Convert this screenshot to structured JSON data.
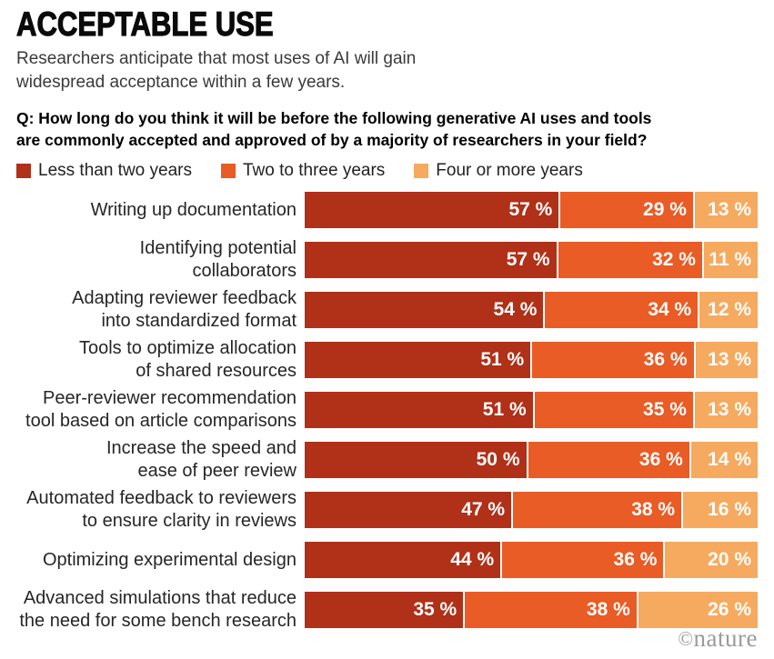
{
  "header": {
    "title": "ACCEPTABLE USE",
    "subtitle_lines": [
      "Researchers anticipate that most uses of AI will gain",
      "widespread acceptance within a few years."
    ],
    "question_lines": [
      "Q: How long do you think it will be before the following generative AI uses and tools",
      "are commonly accepted and approved of by a majority of researchers in your field?"
    ]
  },
  "legend": [
    {
      "label": "Less than two years",
      "color": "#b13018"
    },
    {
      "label": "Two to three years",
      "color": "#e95c25"
    },
    {
      "label": "Four or more years",
      "color": "#f6aa5f"
    }
  ],
  "chart_data": {
    "type": "bar",
    "orientation": "horizontal",
    "stacked": true,
    "value_suffix": " %",
    "series": [
      "Less than two years",
      "Two to three years",
      "Four or more years"
    ],
    "colors": [
      "#b13018",
      "#e95c25",
      "#f6aa5f"
    ],
    "categories": [
      "Writing up documentation",
      "Identifying potential collaborators",
      "Adapting reviewer feedback into standardized format",
      "Tools to optimize allocation of shared resources",
      "Peer-reviewer recommendation tool based on article comparisons",
      "Increase the speed and ease of peer review",
      "Automated feedback to reviewers to ensure clarity in reviews",
      "Optimizing experimental design",
      "Advanced simulations that reduce the need for some bench research"
    ],
    "rows": [
      {
        "label_lines": [
          "Writing up documentation"
        ],
        "values": [
          57,
          29,
          13
        ]
      },
      {
        "label_lines": [
          "Identifying potential",
          "collaborators"
        ],
        "values": [
          57,
          32,
          11
        ]
      },
      {
        "label_lines": [
          "Adapting reviewer feedback",
          "into standardized format"
        ],
        "values": [
          54,
          34,
          12
        ]
      },
      {
        "label_lines": [
          "Tools to optimize allocation",
          "of shared resources"
        ],
        "values": [
          51,
          36,
          13
        ]
      },
      {
        "label_lines": [
          "Peer-reviewer recommendation",
          "tool based on article comparisons"
        ],
        "values": [
          51,
          35,
          13
        ]
      },
      {
        "label_lines": [
          "Increase the speed and",
          "ease of peer review"
        ],
        "values": [
          50,
          36,
          14
        ]
      },
      {
        "label_lines": [
          "Automated feedback to reviewers",
          "to ensure clarity in reviews"
        ],
        "values": [
          47,
          38,
          16
        ]
      },
      {
        "label_lines": [
          "Optimizing experimental design"
        ],
        "values": [
          44,
          36,
          20
        ]
      },
      {
        "label_lines": [
          "Advanced simulations that reduce",
          "the need for some bench research"
        ],
        "values": [
          35,
          38,
          26
        ]
      }
    ]
  },
  "footer": {
    "copyright": "©",
    "brand": "nature"
  }
}
